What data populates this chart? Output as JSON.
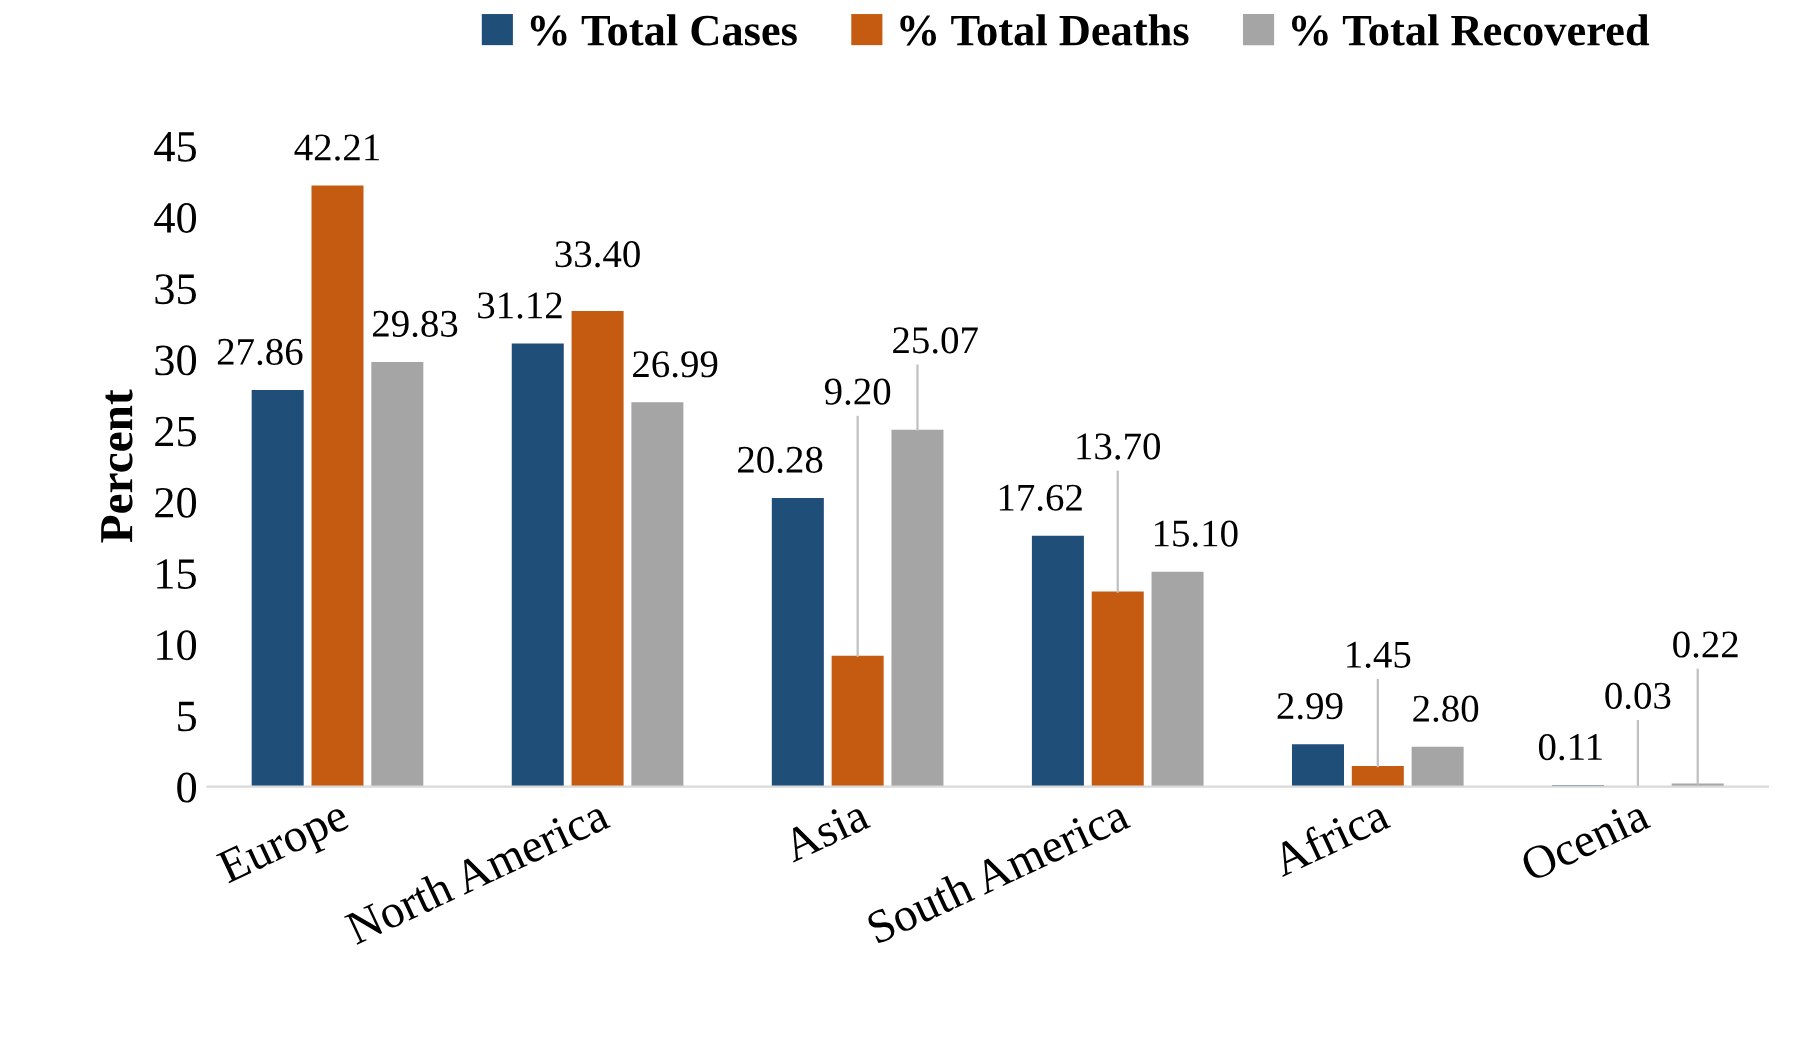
{
  "chart_data": {
    "type": "bar",
    "ylabel": "Percent",
    "categories": [
      "Europe",
      "North America",
      "Asia",
      "South America",
      "Africa",
      "Ocenia"
    ],
    "series": [
      {
        "name": "% Total Cases",
        "color": "#1f4e79",
        "values": [
          27.86,
          31.12,
          20.28,
          17.62,
          2.99,
          0.11
        ],
        "value_labels": [
          "27.86",
          "31.12",
          "20.28",
          "17.62",
          "2.99",
          "0.11"
        ]
      },
      {
        "name": "% Total Deaths",
        "color": "#c55a11",
        "values": [
          42.21,
          33.4,
          9.2,
          13.7,
          1.45,
          0.03
        ],
        "value_labels": [
          "42.21",
          "33.40",
          "9.20",
          "13.70",
          "1.45",
          "0.03"
        ]
      },
      {
        "name": "% Total Recovered",
        "color": "#a5a5a5",
        "values": [
          29.83,
          26.99,
          25.07,
          15.1,
          2.8,
          0.22
        ],
        "value_labels": [
          "29.83",
          "26.99",
          "25.07",
          "15.10",
          "2.80",
          "0.22"
        ]
      }
    ],
    "ylim": [
      0,
      45
    ],
    "yticks": [
      0,
      5,
      10,
      15,
      20,
      25,
      30,
      35,
      40,
      45
    ],
    "grid": false,
    "legend": "top"
  }
}
